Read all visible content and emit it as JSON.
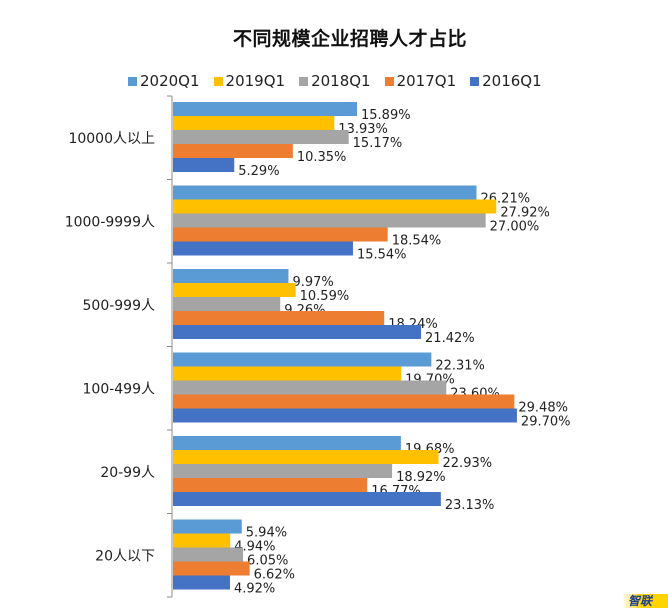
{
  "chart_data": {
    "type": "bar",
    "orientation": "horizontal",
    "title": "不同规模企业招聘人才占比",
    "xlabel": "",
    "ylabel": "",
    "value_suffix": "%",
    "xlim": [
      0,
      32
    ],
    "grid": false,
    "legend_position": "top",
    "categories": [
      "10000人以上",
      "1000-9999人",
      "500-999人",
      "100-499人",
      "20-99人",
      "20人以下"
    ],
    "series": [
      {
        "name": "2020Q1",
        "color": "#5B9BD5",
        "values": [
          15.89,
          26.21,
          9.97,
          22.31,
          19.68,
          5.94
        ]
      },
      {
        "name": "2019Q1",
        "color": "#FFC000",
        "values": [
          13.93,
          27.92,
          10.59,
          19.7,
          22.93,
          4.94
        ]
      },
      {
        "name": "2018Q1",
        "color": "#A5A5A5",
        "values": [
          15.17,
          27.0,
          9.26,
          23.6,
          18.92,
          6.05
        ]
      },
      {
        "name": "2017Q1",
        "color": "#ED7D31",
        "values": [
          10.35,
          18.54,
          18.24,
          29.48,
          16.77,
          6.62
        ]
      },
      {
        "name": "2016Q1",
        "color": "#4472C4",
        "values": [
          5.29,
          15.54,
          21.42,
          29.7,
          23.13,
          4.92
        ]
      }
    ],
    "data_labels": [
      [
        "15.89%",
        "13.93%",
        "15.17%",
        "10.35%",
        "5.29%"
      ],
      [
        "26.21%",
        "27.92%",
        "27.00%",
        "18.54%",
        "15.54%"
      ],
      [
        "9.97%",
        "10.59%",
        "9.26%",
        "18.24%",
        "21.42%"
      ],
      [
        "22.31%",
        "19.70%",
        "23.60%",
        "29.48%",
        "29.70%"
      ],
      [
        "19.68%",
        "22.93%",
        "18.92%",
        "16.77%",
        "23.13%"
      ],
      [
        "5.94%",
        "4.94%",
        "6.05%",
        "6.62%",
        "4.92%"
      ]
    ]
  },
  "watermark": {
    "text": "智联"
  }
}
